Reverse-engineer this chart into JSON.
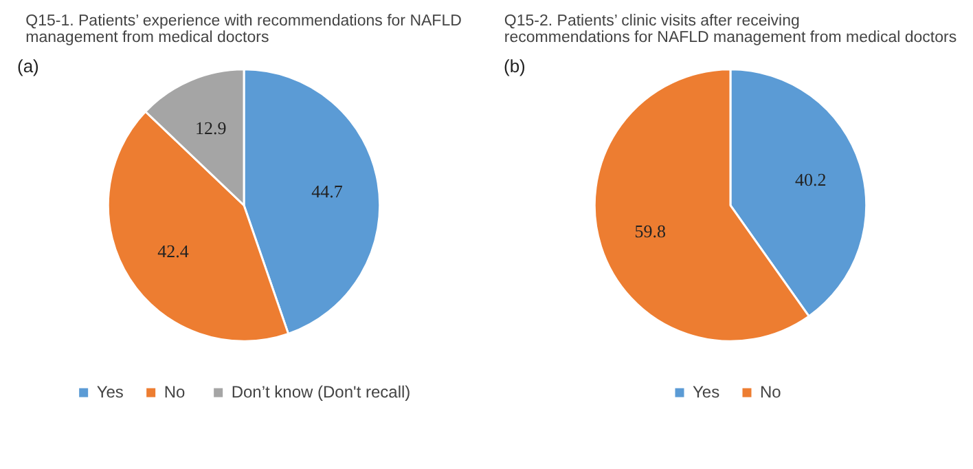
{
  "chart_data": [
    {
      "type": "pie",
      "title": "Q15-1. Patients’ experience with recommendations for NAFLD management from medical doctors",
      "annotations": [
        "(a)"
      ],
      "categories": [
        "Yes",
        "No",
        "Don’t know (Don't recall)"
      ],
      "values": [
        44.7,
        42.4,
        12.9
      ],
      "colors": [
        "#5b9bd5",
        "#ed7d31",
        "#a5a5a5"
      ],
      "data_labels": true,
      "legend": "bottom"
    },
    {
      "type": "pie",
      "title": "Q15-2. Patients’ clinic visits after receiving recommendations for NAFLD management from medical doctors",
      "annotations": [
        "(b)"
      ],
      "categories": [
        "Yes",
        "No"
      ],
      "values": [
        40.2,
        59.8
      ],
      "colors": [
        "#5b9bd5",
        "#ed7d31"
      ],
      "data_labels": true,
      "legend": "bottom"
    }
  ]
}
